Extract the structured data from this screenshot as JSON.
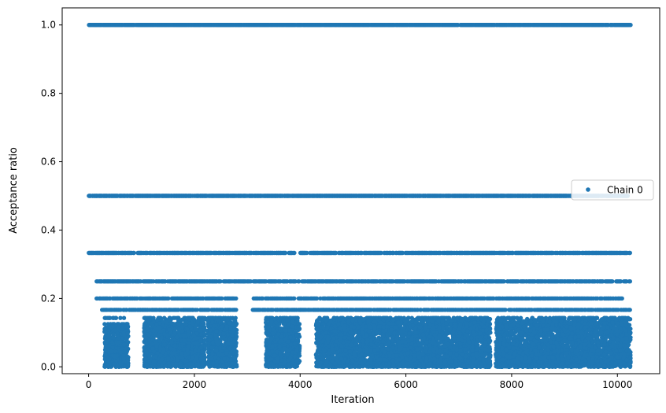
{
  "chart_data": {
    "type": "scatter",
    "title": "",
    "xlabel": "Iteration",
    "ylabel": "Acceptance ratio",
    "xlim": [
      -500,
      10800
    ],
    "ylim": [
      -0.02,
      1.05
    ],
    "x_ticks": [
      0,
      2000,
      4000,
      6000,
      8000,
      10000
    ],
    "x_tick_labels": [
      "0",
      "2000",
      "4000",
      "6000",
      "8000",
      "10000"
    ],
    "y_ticks": [
      0.0,
      0.2,
      0.4,
      0.6,
      0.8,
      1.0
    ],
    "y_tick_labels": [
      "0.0",
      "0.2",
      "0.4",
      "0.6",
      "0.8",
      "1.0"
    ],
    "grid": false,
    "legend_position": "center-right",
    "series": [
      {
        "name": "Chain 0",
        "color": "#1f77b4",
        "marker": "circle",
        "discrete_levels": [
          1.0,
          0.5,
          0.3333,
          0.25,
          0.2,
          0.1667,
          0.1429,
          0.125,
          0.1111,
          0.1
        ],
        "x_range": [
          0,
          10250
        ],
        "level_segments": [
          {
            "y": 1.0,
            "x": [
              [
                0,
                10250
              ]
            ]
          },
          {
            "y": 0.5,
            "x": [
              [
                0,
                10200
              ]
            ]
          },
          {
            "y": 0.3333,
            "x": [
              [
                0,
                3900
              ],
              [
                4000,
                10250
              ]
            ]
          },
          {
            "y": 0.25,
            "x": [
              [
                150,
                10250
              ]
            ]
          },
          {
            "y": 0.2,
            "x": [
              [
                150,
                2800
              ],
              [
                3100,
                10100
              ]
            ]
          },
          {
            "y": 0.1667,
            "x": [
              [
                250,
                2800
              ],
              [
                3100,
                10250
              ]
            ]
          }
        ],
        "dense_clusters": [
          {
            "x": [
              300,
              750
            ],
            "y": [
              0.0,
              0.12
            ]
          },
          {
            "x": [
              1050,
              2200
            ],
            "y": [
              0.0,
              0.14
            ]
          },
          {
            "x": [
              2250,
              2800
            ],
            "y": [
              0.0,
              0.14
            ]
          },
          {
            "x": [
              3350,
              3990
            ],
            "y": [
              0.0,
              0.14
            ]
          },
          {
            "x": [
              4300,
              7600
            ],
            "y": [
              0.0,
              0.14
            ]
          },
          {
            "x": [
              7700,
              10250
            ],
            "y": [
              0.0,
              0.14
            ]
          }
        ]
      }
    ]
  }
}
